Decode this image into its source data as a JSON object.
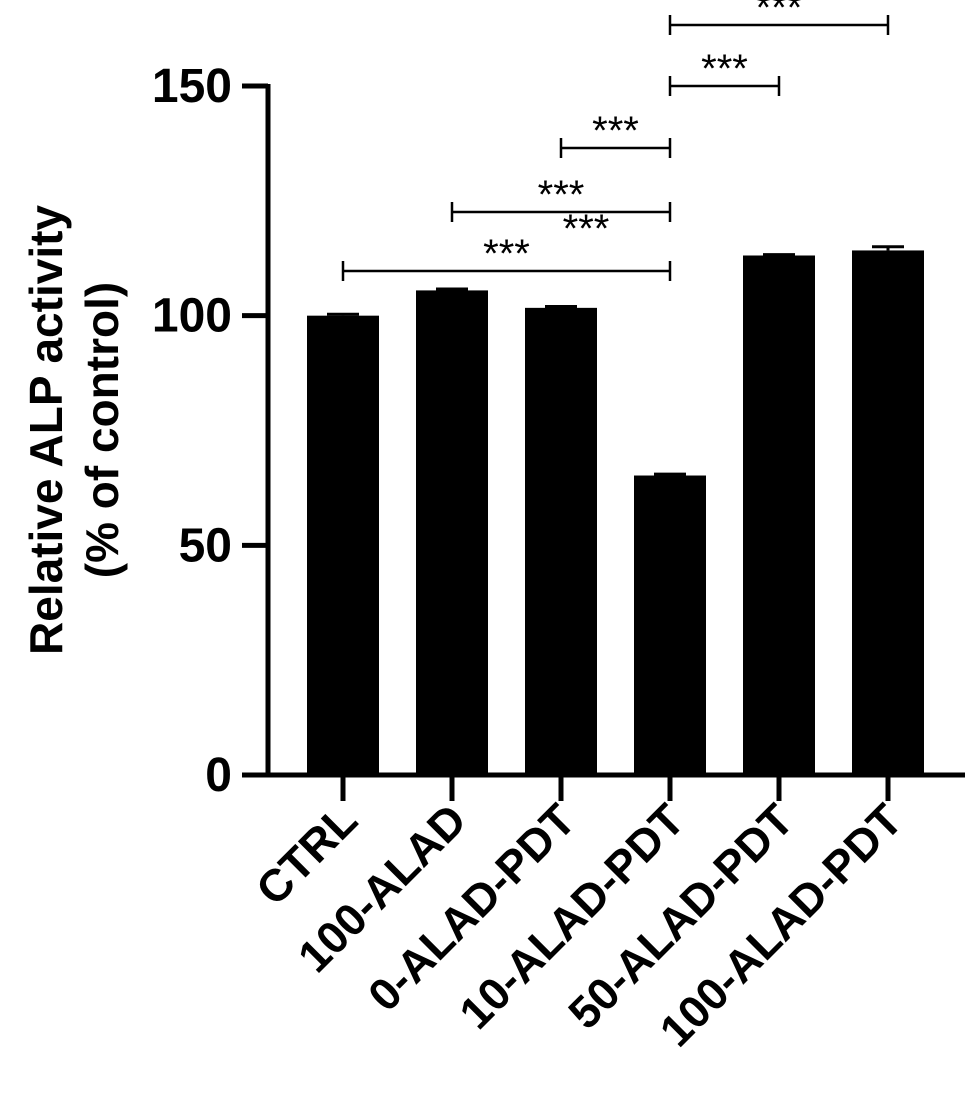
{
  "chart_data": {
    "type": "bar",
    "title": "",
    "xlabel": "",
    "ylabel_lines": [
      "Relative ALP activity",
      "(% of control)"
    ],
    "categories": [
      "CTRL",
      "100-ALAD",
      "0-ALAD-PDT",
      "10-ALAD-PDT",
      "50-ALAD-PDT",
      "100-ALAD-PDT"
    ],
    "values": [
      100,
      105.5,
      101.7,
      65.2,
      113.1,
      114.2
    ],
    "errors": [
      0.3,
      0.3,
      0.3,
      0.3,
      0.2,
      0.8
    ],
    "ylim": [
      0,
      150
    ],
    "yticks": [
      "0",
      "50",
      "100",
      "150"
    ],
    "bar_color": "#000000",
    "grid": false,
    "legend": "none",
    "significance": [
      {
        "from": "CTRL",
        "to": "10-ALAD-PDT",
        "label": "***"
      },
      {
        "from": "100-ALAD",
        "to": "10-ALAD-PDT",
        "label": "***"
      },
      {
        "from": "0-ALAD-PDT",
        "to": "10-ALAD-PDT",
        "label": "***"
      },
      {
        "from": "10-ALAD-PDT",
        "to": "50-ALAD-PDT",
        "label": "***"
      },
      {
        "from": "10-ALAD-PDT",
        "to": "100-ALAD-PDT",
        "label": "***"
      }
    ],
    "extra_annotations": [
      {
        "near": "10-ALAD-PDT",
        "label": "***"
      }
    ]
  }
}
